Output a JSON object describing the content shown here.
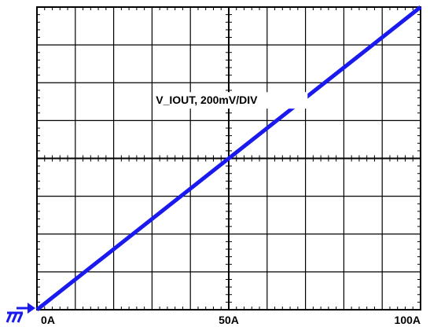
{
  "chart_data": {
    "type": "line",
    "title": "",
    "xlabel": "",
    "ylabel": "",
    "x_ticks": [
      "0A",
      "50A",
      "100A"
    ],
    "xlim": [
      0,
      100
    ],
    "ylim": [
      0,
      1600
    ],
    "grid": true,
    "x_divisions": 10,
    "y_divisions": 8,
    "series": [
      {
        "name": "V_IOUT, 200mV/DIV",
        "color": "#1a1aee",
        "x": [
          0,
          100
        ],
        "y": [
          0,
          1600
        ]
      }
    ],
    "ground_marker_color": "#1a1aee"
  }
}
